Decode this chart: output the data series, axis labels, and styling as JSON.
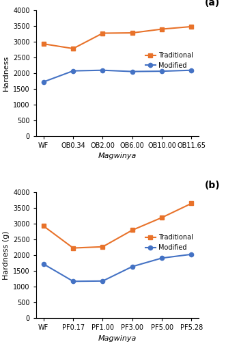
{
  "panel_a": {
    "categories": [
      "WF",
      "OB0.34",
      "OB2.00",
      "OB6.00",
      "OB10.00",
      "OB11.65"
    ],
    "traditional": [
      2930,
      2780,
      3270,
      3280,
      3400,
      3480
    ],
    "modified": [
      1720,
      2070,
      2090,
      2050,
      2060,
      2090
    ],
    "ylabel": "Hardness",
    "xlabel": "Magwinya",
    "label": "(a)",
    "ylim": [
      0,
      4000
    ],
    "yticks": [
      0,
      500,
      1000,
      1500,
      2000,
      2500,
      3000,
      3500,
      4000
    ]
  },
  "panel_b": {
    "categories": [
      "WF",
      "PF0.17",
      "PF1.00",
      "PF3.00",
      "PF5.00",
      "PF5.28"
    ],
    "traditional": [
      2930,
      2230,
      2270,
      2800,
      3200,
      3650
    ],
    "modified": [
      1720,
      1170,
      1180,
      1640,
      1910,
      2030
    ],
    "ylabel": "Hardness (g)",
    "xlabel": "Magwinya",
    "label": "(b)",
    "ylim": [
      0,
      4000
    ],
    "yticks": [
      0,
      500,
      1000,
      1500,
      2000,
      2500,
      3000,
      3500,
      4000
    ]
  },
  "traditional_color": "#E8722A",
  "modified_color": "#4472C4",
  "legend_labels": [
    "Traditional",
    "Modified"
  ],
  "marker_traditional": "s",
  "marker_modified": "o",
  "linewidth": 1.5,
  "markersize": 4.5,
  "tick_fontsize": 7,
  "label_fontsize": 8,
  "legend_fontsize": 7,
  "panel_label_fontsize": 10
}
